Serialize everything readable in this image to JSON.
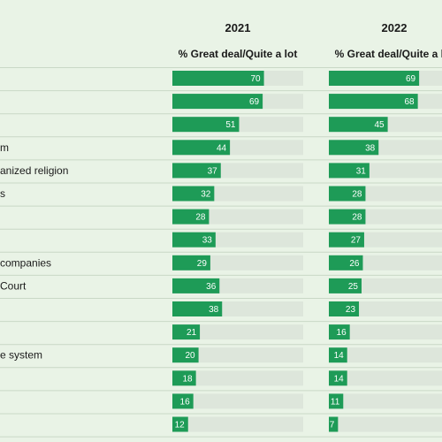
{
  "chart_data": {
    "type": "bar",
    "panels": [
      {
        "year": "2021",
        "header": "% Great deal/Quite a lot"
      },
      {
        "year": "2022",
        "header": "% Great deal/Quite a lot"
      }
    ],
    "categories": [
      "",
      "",
      "",
      "m",
      "anized religion",
      "s",
      "",
      "",
      "companies",
      "Court",
      "",
      "",
      "e system",
      "",
      "",
      ""
    ],
    "series": [
      {
        "name": "2021",
        "values": [
          70,
          69,
          51,
          44,
          37,
          32,
          28,
          33,
          29,
          36,
          38,
          21,
          20,
          18,
          16,
          12
        ]
      },
      {
        "name": "2022",
        "values": [
          69,
          68,
          45,
          38,
          31,
          28,
          28,
          27,
          26,
          25,
          23,
          16,
          14,
          14,
          11,
          7
        ]
      }
    ],
    "xlim": [
      0,
      100
    ],
    "colors": {
      "bar": "#1e9b57",
      "track": "#dde6db",
      "divider": "#c9d8c6",
      "background": "#e9f3e6"
    }
  }
}
